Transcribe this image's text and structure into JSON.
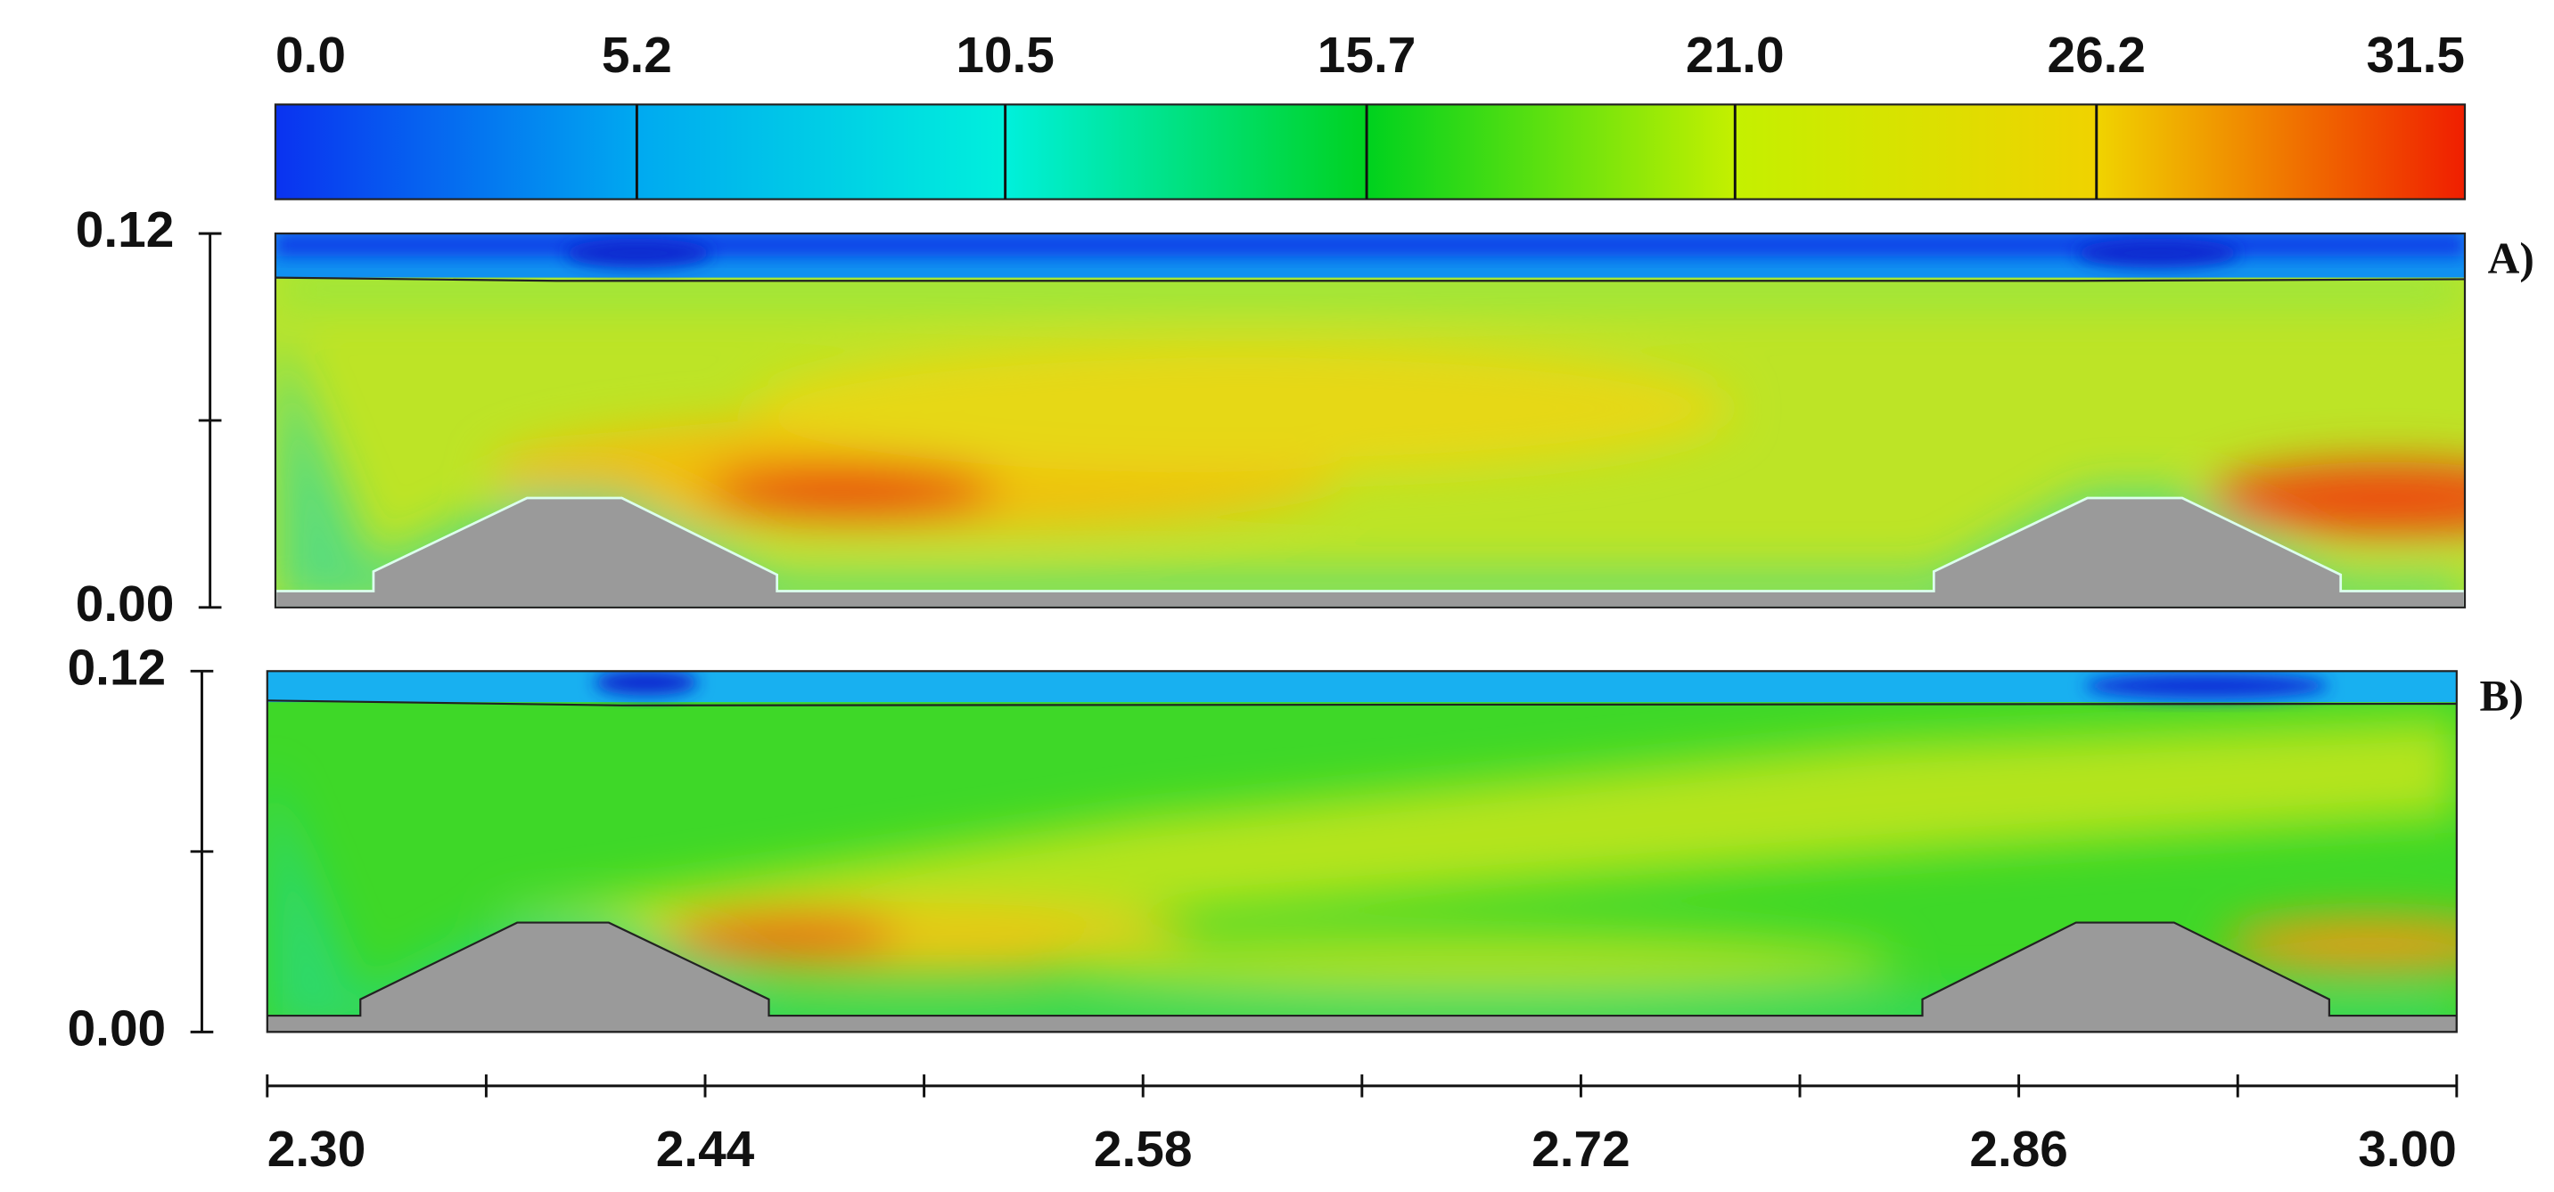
{
  "chart_data": {
    "type": "contour",
    "colorbar": {
      "lim": [
        0,
        31.5
      ],
      "ticks": [
        {
          "value": 0,
          "label": "0.0"
        },
        5.2,
        10.5,
        15.7,
        {
          "value": 21,
          "label": "21.0"
        },
        26.2,
        31.5
      ],
      "colors": [
        "#0a32f0",
        "#00aaf0",
        "#00f0dc",
        "#00d21e",
        "#c4f000",
        "#f0d200",
        "#f01e00"
      ]
    },
    "xlim": [
      2.3,
      3.0
    ],
    "xticks": [
      {
        "value": 2.3,
        "label": "2.30"
      },
      2.44,
      2.58,
      2.72,
      2.86,
      {
        "value": 3.0,
        "label": "3.00"
      }
    ],
    "xminor_ticks": [
      2.37,
      2.51,
      2.65,
      2.79,
      2.93
    ],
    "panels": [
      {
        "label": "A)",
        "ylim": [
          0,
          0.12
        ],
        "yticks": [
          {
            "value": 0,
            "label": "0.00"
          },
          0.12
        ],
        "yminor_ticks": [
          0.06
        ]
      },
      {
        "label": "B)",
        "ylim": [
          0,
          0.12
        ],
        "yticks": [
          {
            "value": 0,
            "label": "0.00"
          },
          0.12
        ],
        "yminor_ticks": [
          0.06
        ]
      }
    ]
  }
}
